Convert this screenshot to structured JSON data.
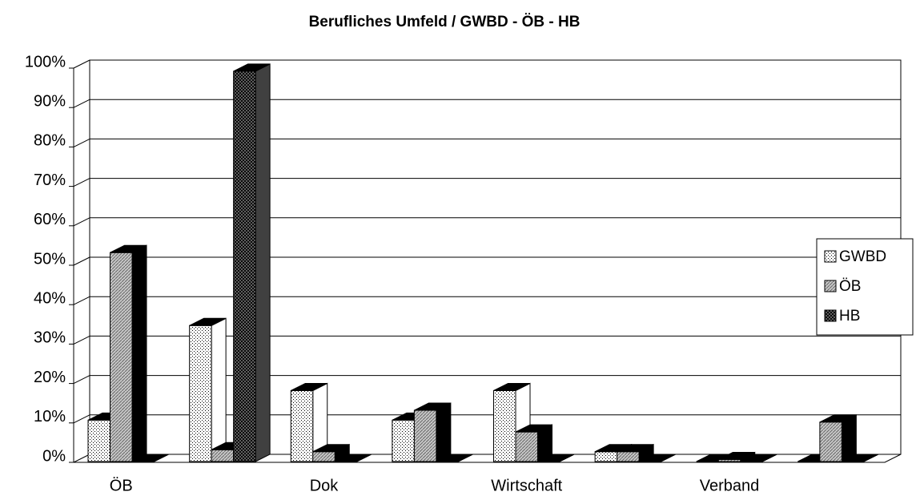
{
  "chart_data": {
    "type": "bar3d",
    "title": "Berufliches Umfeld / GWBD - ÖB - HB",
    "categories": [
      "ÖB",
      null,
      "Dok",
      null,
      "Wirtschaft",
      null,
      "Verband",
      null
    ],
    "series": [
      {
        "name": "GWBD",
        "color": "#ffffff",
        "values": [
          10.5,
          34.5,
          18,
          10.5,
          18,
          2.5,
          0,
          0
        ]
      },
      {
        "name": "ÖB",
        "color": "#c8c8c8",
        "values": [
          53,
          3,
          2.5,
          13,
          7.5,
          2.5,
          0.5,
          10
        ]
      },
      {
        "name": "HB",
        "color": "#808080",
        "values": [
          0,
          99,
          0,
          0,
          0,
          0,
          0,
          0
        ]
      }
    ],
    "ylim": [
      0,
      100
    ],
    "yticks": [
      {
        "value": 0,
        "label": "0%"
      },
      {
        "value": 10,
        "label": "10%"
      },
      {
        "value": 20,
        "label": "20%"
      },
      {
        "value": 30,
        "label": "30%"
      },
      {
        "value": 40,
        "label": "40%"
      },
      {
        "value": 50,
        "label": "50%"
      },
      {
        "value": 60,
        "label": "60%"
      },
      {
        "value": 70,
        "label": "70%"
      },
      {
        "value": 80,
        "label": "80%"
      },
      {
        "value": 90,
        "label": "90%"
      },
      {
        "value": 100,
        "label": "100%"
      }
    ],
    "grid": true,
    "legend": "right"
  }
}
